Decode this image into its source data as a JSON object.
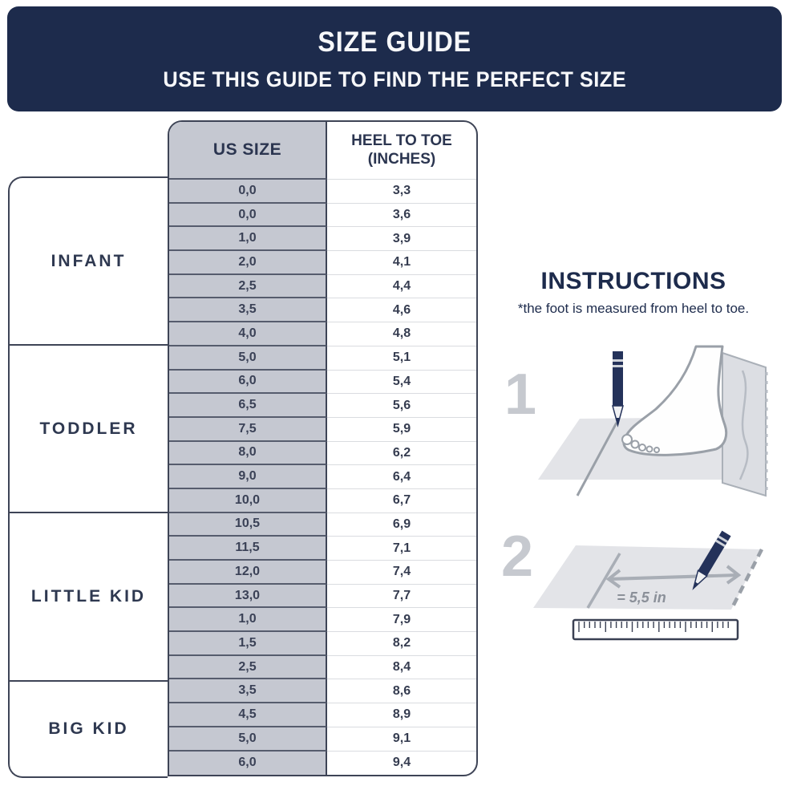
{
  "header": {
    "title": "SIZE GUIDE",
    "subtitle": "USE THIS GUIDE TO FIND THE PERFECT SIZE"
  },
  "table": {
    "columns": [
      {
        "label": "US SIZE"
      },
      {
        "line1": "HEEL TO TOE",
        "line2": "(INCHES)"
      }
    ],
    "categories": [
      {
        "label": "INFANT",
        "rows": [
          [
            "0,0",
            "3,3"
          ],
          [
            "0,0",
            "3,6"
          ],
          [
            "1,0",
            "3,9"
          ],
          [
            "2,0",
            "4,1"
          ],
          [
            "2,5",
            "4,4"
          ],
          [
            "3,5",
            "4,6"
          ],
          [
            "4,0",
            "4,8"
          ]
        ]
      },
      {
        "label": "TODDLER",
        "rows": [
          [
            "5,0",
            "5,1"
          ],
          [
            "6,0",
            "5,4"
          ],
          [
            "6,5",
            "5,6"
          ],
          [
            "7,5",
            "5,9"
          ],
          [
            "8,0",
            "6,2"
          ],
          [
            "9,0",
            "6,4"
          ],
          [
            "10,0",
            "6,7"
          ]
        ]
      },
      {
        "label": "LITTLE KID",
        "rows": [
          [
            "10,5",
            "6,9"
          ],
          [
            "11,5",
            "7,1"
          ],
          [
            "12,0",
            "7,4"
          ],
          [
            "13,0",
            "7,7"
          ],
          [
            "1,0",
            "7,9"
          ],
          [
            "1,5",
            "8,2"
          ],
          [
            "2,5",
            "8,4"
          ]
        ]
      },
      {
        "label": "BIG KID",
        "rows": [
          [
            "3,5",
            "8,6"
          ],
          [
            "4,5",
            "8,9"
          ],
          [
            "5,0",
            "9,1"
          ],
          [
            "6,0",
            "9,4"
          ]
        ]
      }
    ]
  },
  "instructions": {
    "title": "INSTRUCTIONS",
    "note": "*the foot is measured from heel to toe.",
    "steps": [
      {
        "number": "1"
      },
      {
        "number": "2",
        "measurement_label": "= 5,5 in"
      }
    ]
  },
  "colors": {
    "navy": "#1d2b4c",
    "table_border": "#3e4456",
    "gray_column": "#c5c8d1",
    "dark_row_line": "#565c6d",
    "light_row_line": "#dadce0",
    "illustration_gray": "#9aa0a8",
    "paper_gray": "#e3e4e8",
    "pencil_navy": "#24325a",
    "step_number_gray": "#c6c9cf"
  }
}
